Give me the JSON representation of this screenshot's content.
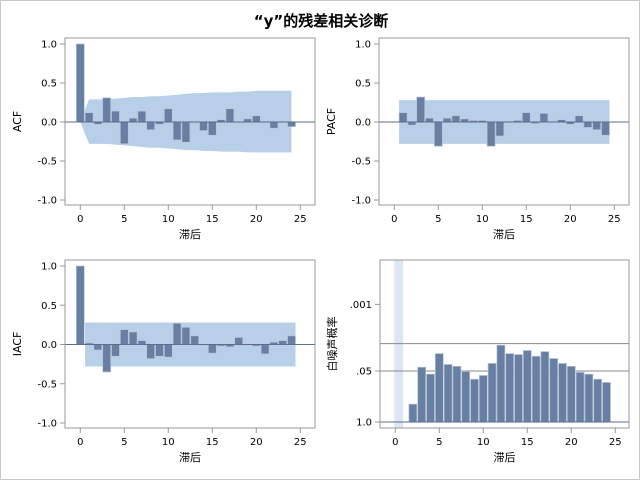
{
  "title": "“y”的残差相关诊断",
  "colors": {
    "bar": "#667fa3",
    "bar_edge": "#b9c5d8",
    "band": "#b8cfe8",
    "band_light": "#dde6f3",
    "axis": "#999999",
    "zero": "#5b6e8c"
  },
  "chart_data": [
    {
      "type": "bar",
      "name": "acf",
      "ylabel": "ACF",
      "xlabel": "滞后",
      "ylim": [
        -1.0,
        1.0
      ],
      "yticks": [
        "1.0",
        "0.5",
        "0.0",
        "-0.5",
        "-1.0"
      ],
      "ytick_values": [
        1.0,
        0.5,
        0.0,
        -0.5,
        -1.0
      ],
      "xlim": [
        -1.5,
        27.2
      ],
      "xticks": [
        "0",
        "5",
        "10",
        "15",
        "20",
        "25"
      ],
      "xtick_values": [
        0,
        5,
        10,
        15,
        20,
        25
      ],
      "lags": [
        0,
        1,
        2,
        3,
        4,
        5,
        6,
        7,
        8,
        9,
        10,
        11,
        12,
        13,
        14,
        15,
        16,
        17,
        18,
        19,
        20,
        21,
        22,
        23,
        24
      ],
      "values": [
        1.0,
        0.12,
        -0.03,
        0.31,
        0.14,
        -0.28,
        0.05,
        0.14,
        -0.1,
        -0.03,
        0.17,
        -0.23,
        -0.26,
        0.0,
        -0.11,
        -0.17,
        0.03,
        0.17,
        -0.01,
        0.04,
        0.08,
        0.01,
        -0.08,
        0.01,
        -0.06
      ],
      "band_upper": [
        0,
        0.29,
        0.29,
        0.29,
        0.3,
        0.31,
        0.32,
        0.32,
        0.33,
        0.33,
        0.34,
        0.35,
        0.36,
        0.37,
        0.37,
        0.38,
        0.38,
        0.38,
        0.39,
        0.39,
        0.4,
        0.4,
        0.4,
        0.4,
        0.4
      ],
      "band_lower": [
        0,
        -0.28,
        -0.28,
        -0.28,
        -0.29,
        -0.3,
        -0.31,
        -0.32,
        -0.33,
        -0.33,
        -0.34,
        -0.35,
        -0.36,
        -0.36,
        -0.37,
        -0.37,
        -0.38,
        -0.38,
        -0.38,
        -0.39,
        -0.39,
        -0.39,
        -0.39,
        -0.39,
        -0.39
      ]
    },
    {
      "type": "bar",
      "name": "pacf",
      "ylabel": "PACF",
      "xlabel": "滞后",
      "ylim": [
        -1.0,
        1.0
      ],
      "yticks": [
        "1.0",
        "0.5",
        "0.0",
        "-0.5",
        "-1.0"
      ],
      "ytick_values": [
        1.0,
        0.5,
        0.0,
        -0.5,
        -1.0
      ],
      "xlim": [
        -1.5,
        27.2
      ],
      "xticks": [
        "0",
        "5",
        "10",
        "15",
        "20",
        "25"
      ],
      "xtick_values": [
        0,
        5,
        10,
        15,
        20,
        25
      ],
      "lags": [
        1,
        2,
        3,
        4,
        5,
        6,
        7,
        8,
        9,
        10,
        11,
        12,
        13,
        14,
        15,
        16,
        17,
        18,
        19,
        20,
        21,
        22,
        23,
        24
      ],
      "values": [
        0.12,
        -0.04,
        0.32,
        0.05,
        -0.31,
        0.05,
        0.08,
        0.04,
        0.02,
        0.02,
        -0.31,
        -0.18,
        -0.01,
        0.02,
        0.12,
        -0.02,
        0.11,
        0.01,
        0.03,
        -0.03,
        0.08,
        -0.07,
        -0.1,
        -0.17
      ],
      "band": 0.28
    },
    {
      "type": "bar",
      "name": "iacf",
      "ylabel": "IACF",
      "xlabel": "滞后",
      "ylim": [
        -1.0,
        1.0
      ],
      "yticks": [
        "1.0",
        "0.5",
        "0.0",
        "-0.5",
        "-1.0"
      ],
      "ytick_values": [
        1.0,
        0.5,
        0.0,
        -0.5,
        -1.0
      ],
      "xlim": [
        -1.5,
        27.2
      ],
      "xticks": [
        "0",
        "5",
        "10",
        "15",
        "20",
        "25"
      ],
      "xtick_values": [
        0,
        5,
        10,
        15,
        20,
        25
      ],
      "lags": [
        0,
        1,
        2,
        3,
        4,
        5,
        6,
        7,
        8,
        9,
        10,
        11,
        12,
        13,
        14,
        15,
        16,
        17,
        18,
        19,
        20,
        21,
        22,
        23,
        24
      ],
      "values": [
        1.0,
        0.02,
        -0.07,
        -0.35,
        -0.15,
        0.19,
        0.16,
        0.05,
        -0.18,
        -0.15,
        -0.16,
        0.27,
        0.22,
        0.11,
        0.0,
        -0.11,
        -0.02,
        -0.03,
        0.09,
        0.0,
        -0.02,
        -0.12,
        0.03,
        0.05,
        0.11
      ],
      "band": 0.28
    },
    {
      "type": "bar",
      "name": "white-noise",
      "ylabel": "白噪声概率",
      "xlabel": "滞后",
      "yscale": "-log10 probability",
      "yticks": [
        ".001",
        ".05",
        "1.0"
      ],
      "ytick_values": [
        0.001,
        0.05,
        1.0
      ],
      "reference_lines": [
        0.05,
        0.01
      ],
      "xlim": [
        -1.5,
        27.2
      ],
      "xticks": [
        "0",
        "5",
        "10",
        "15",
        "20",
        "25"
      ],
      "xtick_values": [
        0,
        5,
        10,
        15,
        20,
        25
      ],
      "lags": [
        2,
        3,
        4,
        5,
        6,
        7,
        8,
        9,
        10,
        11,
        12,
        13,
        14,
        15,
        16,
        17,
        18,
        19,
        20,
        21,
        22,
        23,
        24
      ],
      "values": [
        0.35,
        0.04,
        0.06,
        0.018,
        0.034,
        0.038,
        0.051,
        0.081,
        0.065,
        0.032,
        0.011,
        0.018,
        0.019,
        0.015,
        0.021,
        0.016,
        0.024,
        0.032,
        0.038,
        0.054,
        0.06,
        0.081,
        0.098
      ]
    }
  ]
}
